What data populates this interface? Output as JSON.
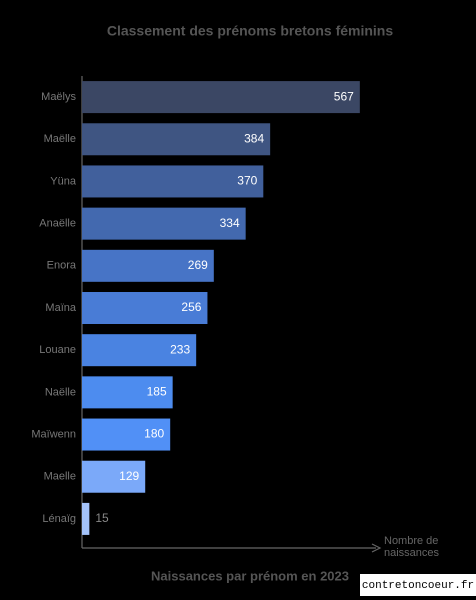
{
  "chart_data": {
    "type": "bar",
    "orientation": "horizontal",
    "title": "Classement des prénoms bretons féminins",
    "x_title": "Naissances par prénom en 2023",
    "axis_label": "Nombre de naissances",
    "watermark": "contretoncoeur.fr",
    "categories": [
      "Maëlys",
      "Maëlle",
      "Yüna",
      "Anaëlle",
      "Enora",
      "Maïna",
      "Louane",
      "Naëlle",
      "Maïwenn",
      "Maelle",
      "Lénaïg"
    ],
    "values": [
      567,
      384,
      370,
      334,
      269,
      256,
      233,
      185,
      180,
      129,
      15
    ],
    "colors": [
      "#3b4764",
      "#3f5582",
      "#41609c",
      "#4369af",
      "#4774c6",
      "#497cd6",
      "#4a83e1",
      "#4d8cef",
      "#5190f6",
      "#7ba9f9",
      "#a4c3fa"
    ],
    "xlim": [
      0,
      600
    ]
  }
}
